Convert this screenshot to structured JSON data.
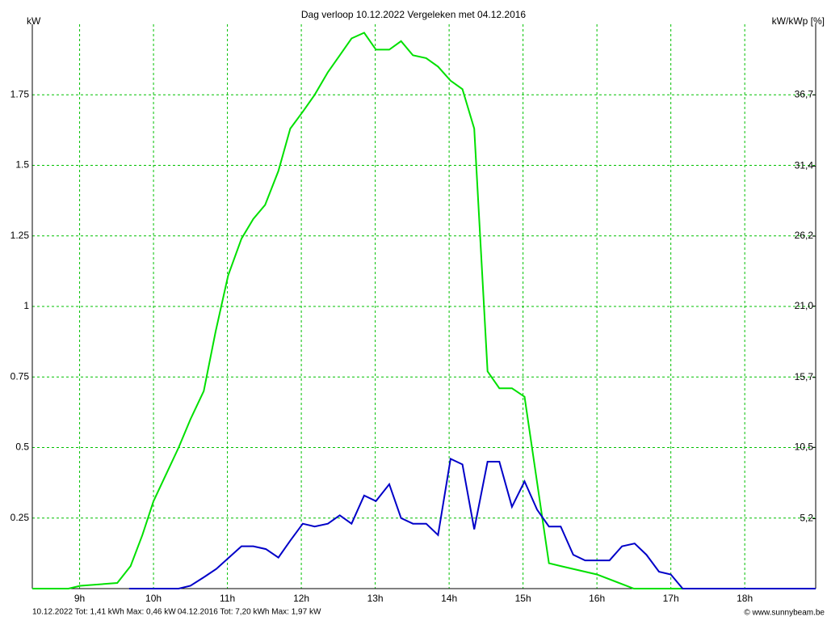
{
  "chart_data": {
    "type": "line",
    "title": "Dag  verloop 10.12.2022   Vergeleken met 04.12.2016",
    "y_label": "kW",
    "y2_label": "kW/kWp [%]",
    "credit": "© www.sunnybeam.be",
    "xlim": [
      8.36,
      18.96
    ],
    "xticks": [
      {
        "value": 9,
        "label": "9h"
      },
      {
        "value": 10,
        "label": "10h"
      },
      {
        "value": 11,
        "label": "11h"
      },
      {
        "value": 12,
        "label": "12h"
      },
      {
        "value": 13,
        "label": "13h"
      },
      {
        "value": 14,
        "label": "14h"
      },
      {
        "value": 15,
        "label": "15h"
      },
      {
        "value": 16,
        "label": "16h"
      },
      {
        "value": 17,
        "label": "17h"
      },
      {
        "value": 18,
        "label": "18h"
      }
    ],
    "ylim": [
      0,
      2
    ],
    "yticks": [
      0.25,
      0.5,
      0.75,
      1,
      1.25,
      1.5,
      1.75
    ],
    "y2lim": [
      0,
      41.95
    ],
    "y2ticks": [
      {
        "value": 5.2,
        "label": "5,2"
      },
      {
        "value": 10.5,
        "label": "10,5"
      },
      {
        "value": 15.7,
        "label": "15,7"
      },
      {
        "value": 21,
        "label": "21,0"
      },
      {
        "value": 26.2,
        "label": "26,2"
      },
      {
        "value": 31.4,
        "label": "31,4"
      },
      {
        "value": 36.7,
        "label": "36,7"
      }
    ],
    "grid": true,
    "grid_color": "#00c000",
    "series": [
      {
        "name": "04.12.2016 Tot: 7,20 kWh Max: 1,97 kW",
        "color": "#00e000",
        "x": [
          8.36,
          8.85,
          9.01,
          9.51,
          9.69,
          9.85,
          10.0,
          10.34,
          10.5,
          10.68,
          10.84,
          11.01,
          11.19,
          11.35,
          11.51,
          11.69,
          11.85,
          12.02,
          12.18,
          12.36,
          12.52,
          12.68,
          12.85,
          13.01,
          13.19,
          13.35,
          13.51,
          13.69,
          13.85,
          14.02,
          14.18,
          14.34,
          14.52,
          14.68,
          14.85,
          15.02,
          15.35,
          15.51,
          16.0,
          16.5,
          18.96
        ],
        "values": [
          0,
          0,
          0.01,
          0.02,
          0.08,
          0.19,
          0.31,
          0.5,
          0.6,
          0.7,
          0.91,
          1.11,
          1.24,
          1.31,
          1.36,
          1.48,
          1.63,
          1.69,
          1.75,
          1.83,
          1.89,
          1.95,
          1.97,
          1.91,
          1.91,
          1.94,
          1.89,
          1.88,
          1.85,
          1.8,
          1.77,
          1.63,
          0.77,
          0.71,
          0.71,
          0.68,
          0.09,
          0.08,
          0.05,
          0,
          0
        ]
      },
      {
        "name": "10.12.2022 Tot: 1,41 kWh Max: 0,46 kW",
        "color": "#0000c8",
        "x": [
          9.67,
          10.34,
          10.5,
          10.68,
          10.85,
          11.02,
          11.19,
          11.35,
          11.52,
          11.69,
          11.85,
          12.02,
          12.18,
          12.36,
          12.52,
          12.68,
          12.85,
          13.01,
          13.19,
          13.35,
          13.51,
          13.69,
          13.85,
          14.02,
          14.18,
          14.34,
          14.52,
          14.68,
          14.85,
          15.02,
          15.19,
          15.35,
          15.51,
          15.68,
          15.84,
          16.0,
          16.17,
          16.34,
          16.51,
          16.67,
          16.84,
          17.0,
          17.16,
          18.96
        ],
        "values": [
          0,
          0,
          0.01,
          0.04,
          0.07,
          0.11,
          0.15,
          0.15,
          0.14,
          0.11,
          0.17,
          0.23,
          0.22,
          0.23,
          0.26,
          0.23,
          0.33,
          0.31,
          0.37,
          0.25,
          0.23,
          0.23,
          0.19,
          0.46,
          0.44,
          0.21,
          0.45,
          0.45,
          0.29,
          0.38,
          0.28,
          0.22,
          0.22,
          0.12,
          0.1,
          0.1,
          0.1,
          0.15,
          0.16,
          0.12,
          0.06,
          0.05,
          0,
          0
        ]
      }
    ]
  }
}
